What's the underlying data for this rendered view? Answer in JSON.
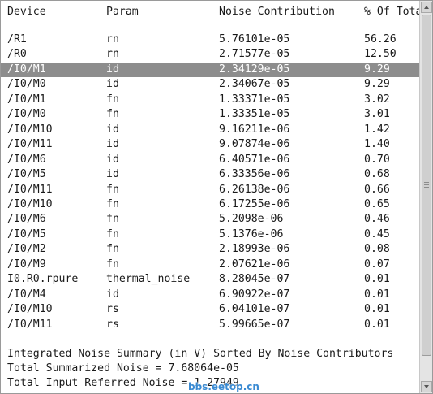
{
  "table": {
    "headers": {
      "device": "Device",
      "param": "Param",
      "noise": "Noise Contribution",
      "percent": "% Of Tota"
    },
    "rows": [
      {
        "device": "/R1",
        "param": "rn",
        "noise": "5.76101e-05",
        "percent": "56.26"
      },
      {
        "device": "/R0",
        "param": "rn",
        "noise": "2.71577e-05",
        "percent": "12.50"
      },
      {
        "device": "/I0/M1",
        "param": "id",
        "noise": "2.34129e-05",
        "percent": "9.29",
        "selected": true
      },
      {
        "device": "/I0/M0",
        "param": "id",
        "noise": "2.34067e-05",
        "percent": "9.29"
      },
      {
        "device": "/I0/M1",
        "param": "fn",
        "noise": "1.33371e-05",
        "percent": "3.02"
      },
      {
        "device": "/I0/M0",
        "param": "fn",
        "noise": "1.33351e-05",
        "percent": "3.01"
      },
      {
        "device": "/I0/M10",
        "param": "id",
        "noise": "9.16211e-06",
        "percent": "1.42"
      },
      {
        "device": "/I0/M11",
        "param": "id",
        "noise": "9.07874e-06",
        "percent": "1.40"
      },
      {
        "device": "/I0/M6",
        "param": "id",
        "noise": "6.40571e-06",
        "percent": "0.70"
      },
      {
        "device": "/I0/M5",
        "param": "id",
        "noise": "6.33356e-06",
        "percent": "0.68"
      },
      {
        "device": "/I0/M11",
        "param": "fn",
        "noise": "6.26138e-06",
        "percent": "0.66"
      },
      {
        "device": "/I0/M10",
        "param": "fn",
        "noise": "6.17255e-06",
        "percent": "0.65"
      },
      {
        "device": "/I0/M6",
        "param": "fn",
        "noise": "5.2098e-06",
        "percent": "0.46"
      },
      {
        "device": "/I0/M5",
        "param": "fn",
        "noise": "5.1376e-06",
        "percent": "0.45"
      },
      {
        "device": "/I0/M2",
        "param": "fn",
        "noise": "2.18993e-06",
        "percent": "0.08"
      },
      {
        "device": "/I0/M9",
        "param": "fn",
        "noise": "2.07621e-06",
        "percent": "0.07"
      },
      {
        "device": "I0.R0.rpure",
        "param": "thermal_noise",
        "noise": "8.28045e-07",
        "percent": "0.01"
      },
      {
        "device": "/I0/M4",
        "param": "id",
        "noise": "6.90922e-07",
        "percent": "0.01"
      },
      {
        "device": "/I0/M10",
        "param": "rs",
        "noise": "6.04101e-07",
        "percent": "0.01"
      },
      {
        "device": "/I0/M11",
        "param": "rs",
        "noise": "5.99665e-07",
        "percent": "0.01"
      }
    ]
  },
  "summary": {
    "line1": "Integrated Noise Summary (in V) Sorted By Noise Contributors",
    "line2": "Total Summarized Noise = 7.68064e-05",
    "line3": "Total Input Referred Noise = 1.27949"
  },
  "watermark": "bbs.eetop.cn"
}
